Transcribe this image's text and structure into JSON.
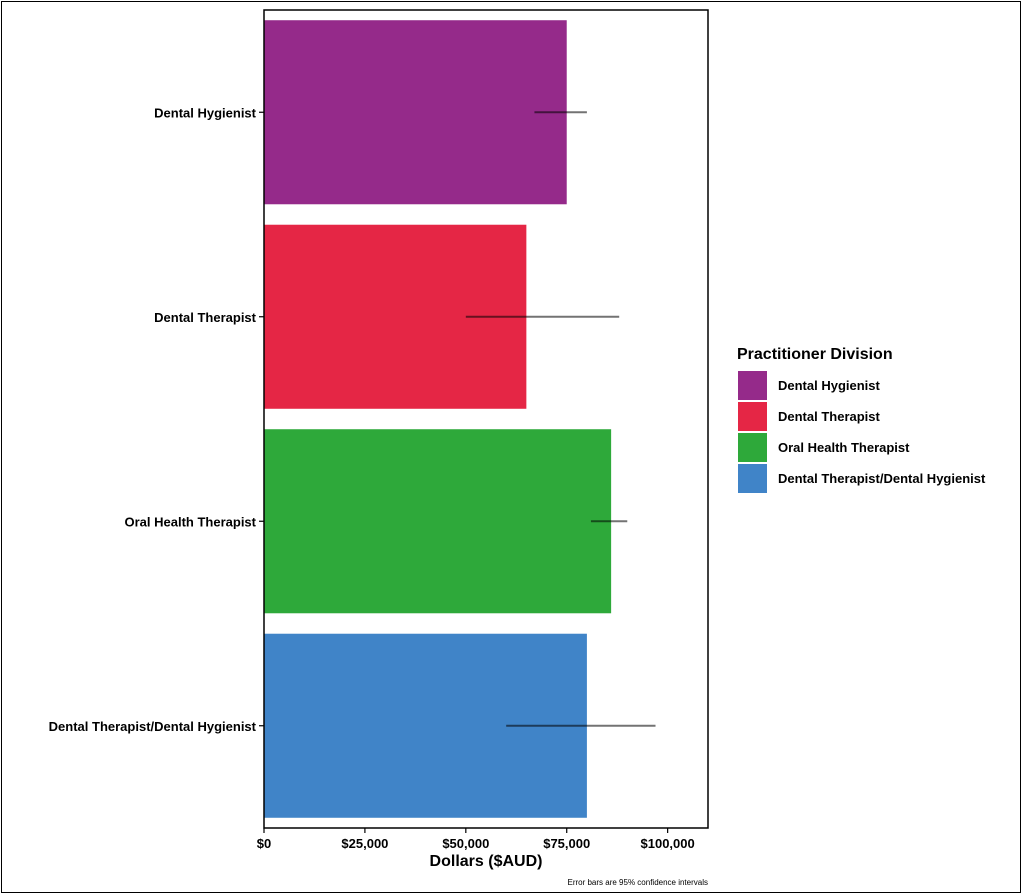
{
  "chart_data": {
    "type": "bar",
    "orientation": "horizontal",
    "categories": [
      "Dental Hygienist",
      "Dental Therapist",
      "Oral Health Therapist",
      "Dental Therapist/Dental Hygienist"
    ],
    "values": [
      75000,
      65000,
      86000,
      80000
    ],
    "error_low": [
      67000,
      50000,
      81000,
      60000
    ],
    "error_high": [
      80000,
      88000,
      90000,
      97000
    ],
    "colors": [
      "#952A8A",
      "#E52645",
      "#2EA93A",
      "#4084C8"
    ],
    "xlabel": "Dollars ($AUD)",
    "ylabel": "",
    "xlim": [
      0,
      110000
    ],
    "xticks": [
      0,
      25000,
      50000,
      75000,
      100000
    ],
    "xtick_labels": [
      "$0",
      "$25,000",
      "$50,000",
      "$75,000",
      "$100,000"
    ],
    "legend": {
      "title": "Practitioner Division",
      "placement": "right",
      "entries": [
        "Dental Hygienist",
        "Dental Therapist",
        "Oral Health Therapist",
        "Dental Therapist/Dental Hygienist"
      ]
    },
    "grid": false,
    "caption": "Error bars are 95% confidence intervals"
  }
}
